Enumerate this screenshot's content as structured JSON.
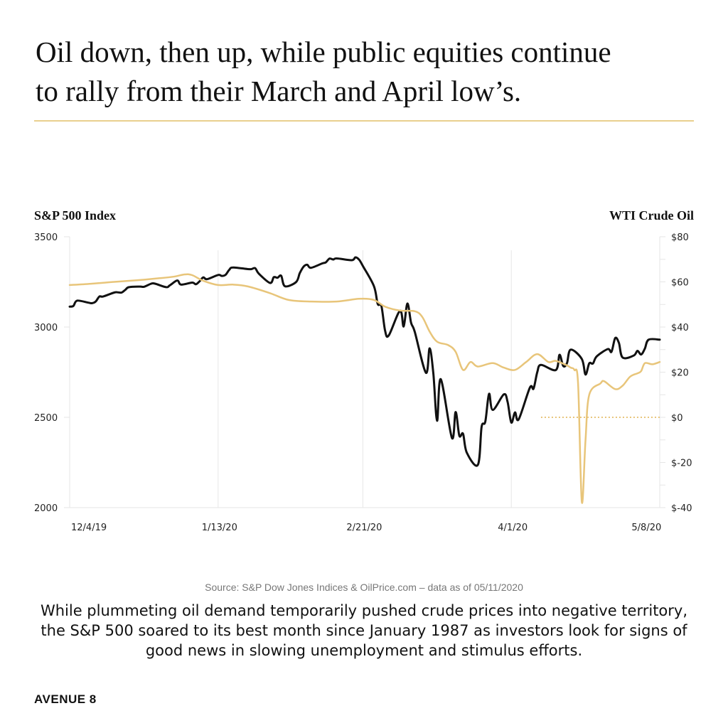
{
  "title_lines": [
    "Oil down, then up, while public equities continue",
    "to rally from their March and April low’s."
  ],
  "source": "Source: S&P Dow Jones Indices & OilPrice.com – data as of 05/11/2020",
  "description": "While plummeting oil demand temporarily pushed crude prices into negative territory, the S&P 500 soared to its best month since January 1987 as investors look for signs of good news in slowing unemployment and stimulus efforts.",
  "brand": "AVENUE 8",
  "chart_data": {
    "type": "line",
    "ylabel": "S&P 500 Index",
    "y2label": "WTI Crude Oil",
    "ylim": [
      2000,
      3500
    ],
    "y2lim": [
      -40,
      80
    ],
    "yticks": [
      "3500",
      "3000",
      "2500",
      "2000"
    ],
    "y2ticks": [
      "$80",
      "$60",
      "$40",
      "$20",
      "$0",
      "$-20",
      "$-40"
    ],
    "xticks": [
      {
        "date": "2019-12-04",
        "label": "12/4/19"
      },
      {
        "date": "2020-01-13",
        "label": "1/13/20"
      },
      {
        "date": "2020-02-21",
        "label": "2/21/20"
      },
      {
        "date": "2020-04-01",
        "label": "4/1/20"
      },
      {
        "date": "2020-05-08",
        "label": "5/8/20"
      }
    ],
    "grid": "vertical",
    "zero_reference_line": {
      "axis": "right",
      "value": 0,
      "from": "2020-04-09",
      "style": "dotted"
    },
    "colors": {
      "sp500": "#111111",
      "wti": "#e8c57a",
      "grid": "#e6e6e6"
    },
    "series": [
      {
        "key": "sp500",
        "axis": "left",
        "points": [
          [
            "2019-12-04",
            3113
          ],
          [
            "2019-12-05",
            3117
          ],
          [
            "2019-12-06",
            3146
          ],
          [
            "2019-12-09",
            3135
          ],
          [
            "2019-12-10",
            3132
          ],
          [
            "2019-12-11",
            3141
          ],
          [
            "2019-12-12",
            3169
          ],
          [
            "2019-12-13",
            3169
          ],
          [
            "2019-12-16",
            3191
          ],
          [
            "2019-12-17",
            3192
          ],
          [
            "2019-12-18",
            3191
          ],
          [
            "2019-12-19",
            3206
          ],
          [
            "2019-12-20",
            3221
          ],
          [
            "2019-12-23",
            3224
          ],
          [
            "2019-12-24",
            3223
          ],
          [
            "2019-12-26",
            3240
          ],
          [
            "2019-12-27",
            3240
          ],
          [
            "2019-12-30",
            3221
          ],
          [
            "2019-12-31",
            3231
          ],
          [
            "2020-01-02",
            3258
          ],
          [
            "2020-01-03",
            3235
          ],
          [
            "2020-01-06",
            3246
          ],
          [
            "2020-01-07",
            3237
          ],
          [
            "2020-01-08",
            3253
          ],
          [
            "2020-01-09",
            3275
          ],
          [
            "2020-01-10",
            3265
          ],
          [
            "2020-01-13",
            3288
          ],
          [
            "2020-01-14",
            3283
          ],
          [
            "2020-01-15",
            3289
          ],
          [
            "2020-01-16",
            3317
          ],
          [
            "2020-01-17",
            3330
          ],
          [
            "2020-01-21",
            3321
          ],
          [
            "2020-01-22",
            3321
          ],
          [
            "2020-01-23",
            3326
          ],
          [
            "2020-01-24",
            3295
          ],
          [
            "2020-01-27",
            3244
          ],
          [
            "2020-01-28",
            3276
          ],
          [
            "2020-01-29",
            3273
          ],
          [
            "2020-01-30",
            3284
          ],
          [
            "2020-01-31",
            3226
          ],
          [
            "2020-02-03",
            3249
          ],
          [
            "2020-02-04",
            3298
          ],
          [
            "2020-02-05",
            3334
          ],
          [
            "2020-02-06",
            3345
          ],
          [
            "2020-02-07",
            3328
          ],
          [
            "2020-02-10",
            3352
          ],
          [
            "2020-02-11",
            3358
          ],
          [
            "2020-02-12",
            3379
          ],
          [
            "2020-02-13",
            3374
          ],
          [
            "2020-02-14",
            3380
          ],
          [
            "2020-02-18",
            3370
          ],
          [
            "2020-02-19",
            3386
          ],
          [
            "2020-02-20",
            3373
          ],
          [
            "2020-02-21",
            3338
          ],
          [
            "2020-02-24",
            3226
          ],
          [
            "2020-02-25",
            3128
          ],
          [
            "2020-02-26",
            3116
          ],
          [
            "2020-02-27",
            2979
          ],
          [
            "2020-02-28",
            2954
          ],
          [
            "2020-03-02",
            3090
          ],
          [
            "2020-03-03",
            3003
          ],
          [
            "2020-03-04",
            3130
          ],
          [
            "2020-03-05",
            3024
          ],
          [
            "2020-03-06",
            2972
          ],
          [
            "2020-03-09",
            2747
          ],
          [
            "2020-03-10",
            2882
          ],
          [
            "2020-03-11",
            2741
          ],
          [
            "2020-03-12",
            2481
          ],
          [
            "2020-03-13",
            2711
          ],
          [
            "2020-03-16",
            2386
          ],
          [
            "2020-03-17",
            2529
          ],
          [
            "2020-03-18",
            2398
          ],
          [
            "2020-03-19",
            2409
          ],
          [
            "2020-03-20",
            2305
          ],
          [
            "2020-03-23",
            2237
          ],
          [
            "2020-03-24",
            2447
          ],
          [
            "2020-03-25",
            2476
          ],
          [
            "2020-03-26",
            2630
          ],
          [
            "2020-03-27",
            2541
          ],
          [
            "2020-03-30",
            2627
          ],
          [
            "2020-03-31",
            2585
          ],
          [
            "2020-04-01",
            2471
          ],
          [
            "2020-04-02",
            2527
          ],
          [
            "2020-04-03",
            2489
          ],
          [
            "2020-04-06",
            2664
          ],
          [
            "2020-04-07",
            2659
          ],
          [
            "2020-04-08",
            2750
          ],
          [
            "2020-04-09",
            2790
          ],
          [
            "2020-04-13",
            2762
          ],
          [
            "2020-04-14",
            2846
          ],
          [
            "2020-04-15",
            2784
          ],
          [
            "2020-04-16",
            2800
          ],
          [
            "2020-04-17",
            2875
          ],
          [
            "2020-04-20",
            2823
          ],
          [
            "2020-04-21",
            2737
          ],
          [
            "2020-04-22",
            2799
          ],
          [
            "2020-04-23",
            2798
          ],
          [
            "2020-04-24",
            2837
          ],
          [
            "2020-04-27",
            2878
          ],
          [
            "2020-04-28",
            2863
          ],
          [
            "2020-04-29",
            2939
          ],
          [
            "2020-04-30",
            2912
          ],
          [
            "2020-05-01",
            2831
          ],
          [
            "2020-05-04",
            2842
          ],
          [
            "2020-05-05",
            2868
          ],
          [
            "2020-05-06",
            2848
          ],
          [
            "2020-05-07",
            2881
          ],
          [
            "2020-05-08",
            2930
          ],
          [
            "2020-05-11",
            2930
          ]
        ]
      },
      {
        "key": "wti",
        "axis": "right",
        "points": [
          [
            "2019-12-04",
            58.6
          ],
          [
            "2019-12-10",
            59.2
          ],
          [
            "2019-12-16",
            60.0
          ],
          [
            "2019-12-22",
            60.7
          ],
          [
            "2019-12-28",
            61.6
          ],
          [
            "2020-01-01",
            62.3
          ],
          [
            "2020-01-04",
            63.3
          ],
          [
            "2020-01-06",
            63.0
          ],
          [
            "2020-01-09",
            60.5
          ],
          [
            "2020-01-13",
            58.6
          ],
          [
            "2020-01-17",
            58.8
          ],
          [
            "2020-01-21",
            58.0
          ],
          [
            "2020-01-27",
            55.0
          ],
          [
            "2020-02-01",
            52.0
          ],
          [
            "2020-02-07",
            51.3
          ],
          [
            "2020-02-14",
            51.3
          ],
          [
            "2020-02-20",
            52.5
          ],
          [
            "2020-02-24",
            52.0
          ],
          [
            "2020-02-27",
            49.0
          ],
          [
            "2020-03-02",
            47.3
          ],
          [
            "2020-03-06",
            47.0
          ],
          [
            "2020-03-08",
            44.5
          ],
          [
            "2020-03-10",
            38.0
          ],
          [
            "2020-03-12",
            33.5
          ],
          [
            "2020-03-15",
            32.0
          ],
          [
            "2020-03-17",
            29.0
          ],
          [
            "2020-03-19",
            21.0
          ],
          [
            "2020-03-21",
            24.5
          ],
          [
            "2020-03-23",
            22.5
          ],
          [
            "2020-03-27",
            24.0
          ],
          [
            "2020-03-30",
            22.0
          ],
          [
            "2020-04-02",
            21.0
          ],
          [
            "2020-04-05",
            24.5
          ],
          [
            "2020-04-08",
            28.0
          ],
          [
            "2020-04-11",
            24.5
          ],
          [
            "2020-04-13",
            25.0
          ],
          [
            "2020-04-16",
            23.0
          ],
          [
            "2020-04-17",
            22.0
          ],
          [
            "2020-04-18",
            21.0
          ],
          [
            "2020-04-19",
            15.0
          ],
          [
            "2020-04-20",
            -37.5
          ],
          [
            "2020-04-21",
            -10.0
          ],
          [
            "2020-04-22",
            10.0
          ],
          [
            "2020-04-25",
            15.0
          ],
          [
            "2020-04-26",
            16.0
          ],
          [
            "2020-04-29",
            12.5
          ],
          [
            "2020-05-01",
            14.0
          ],
          [
            "2020-05-03",
            18.0
          ],
          [
            "2020-05-05",
            19.5
          ],
          [
            "2020-05-06",
            20.5
          ],
          [
            "2020-05-07",
            24.0
          ],
          [
            "2020-05-09",
            23.5
          ],
          [
            "2020-05-11",
            24.5
          ]
        ]
      }
    ]
  }
}
